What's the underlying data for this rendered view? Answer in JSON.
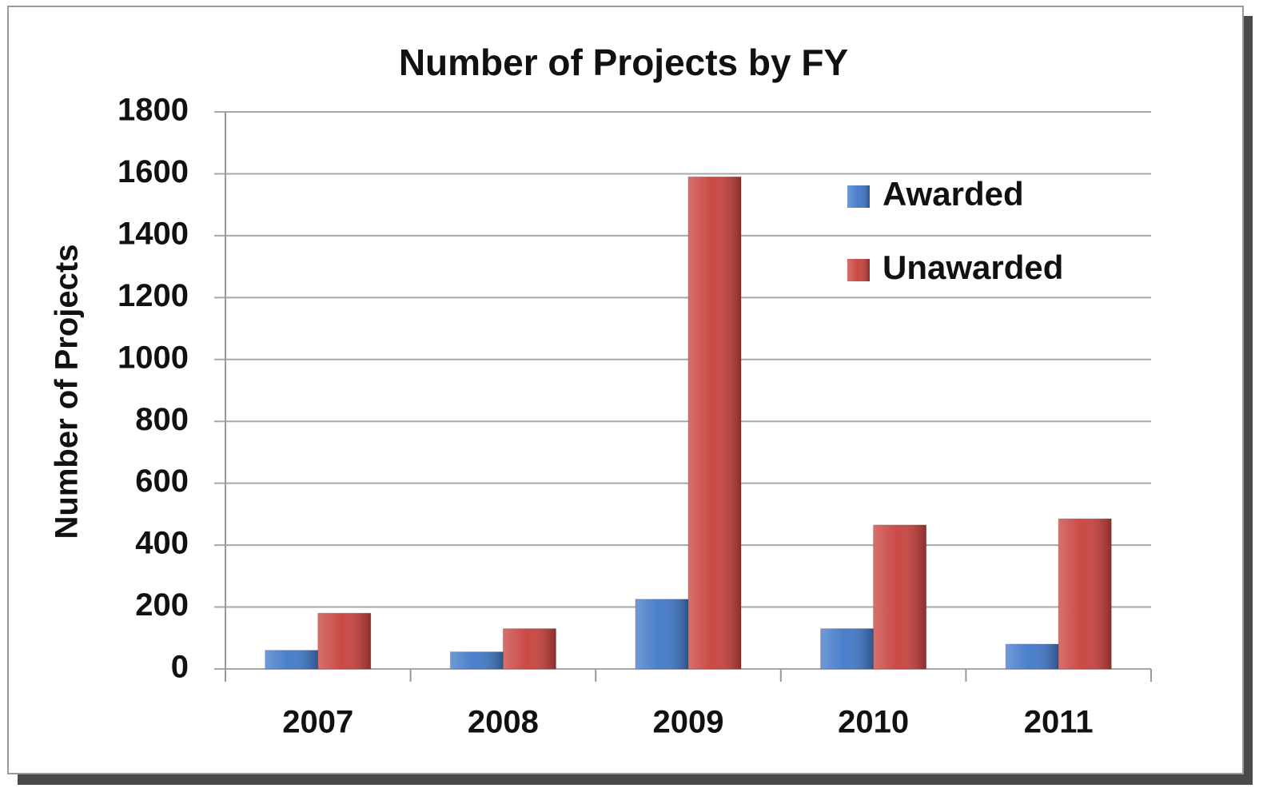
{
  "chart_data": {
    "type": "bar",
    "title": "Number of Projects by FY",
    "y_label": "Number of Projects",
    "categories": [
      "2007",
      "2008",
      "2009",
      "2010",
      "2011"
    ],
    "series": [
      {
        "name": "Awarded",
        "color": "#3f78c8",
        "values": [
          60,
          55,
          225,
          130,
          80
        ]
      },
      {
        "name": "Unawarded",
        "color": "#c8403c",
        "values": [
          180,
          130,
          1590,
          465,
          485
        ]
      }
    ],
    "ylim": [
      0,
      1800
    ],
    "yticks": [
      0,
      200,
      400,
      600,
      800,
      1000,
      1200,
      1400,
      1600,
      1800
    ],
    "grid": true,
    "legend": "upper right"
  }
}
